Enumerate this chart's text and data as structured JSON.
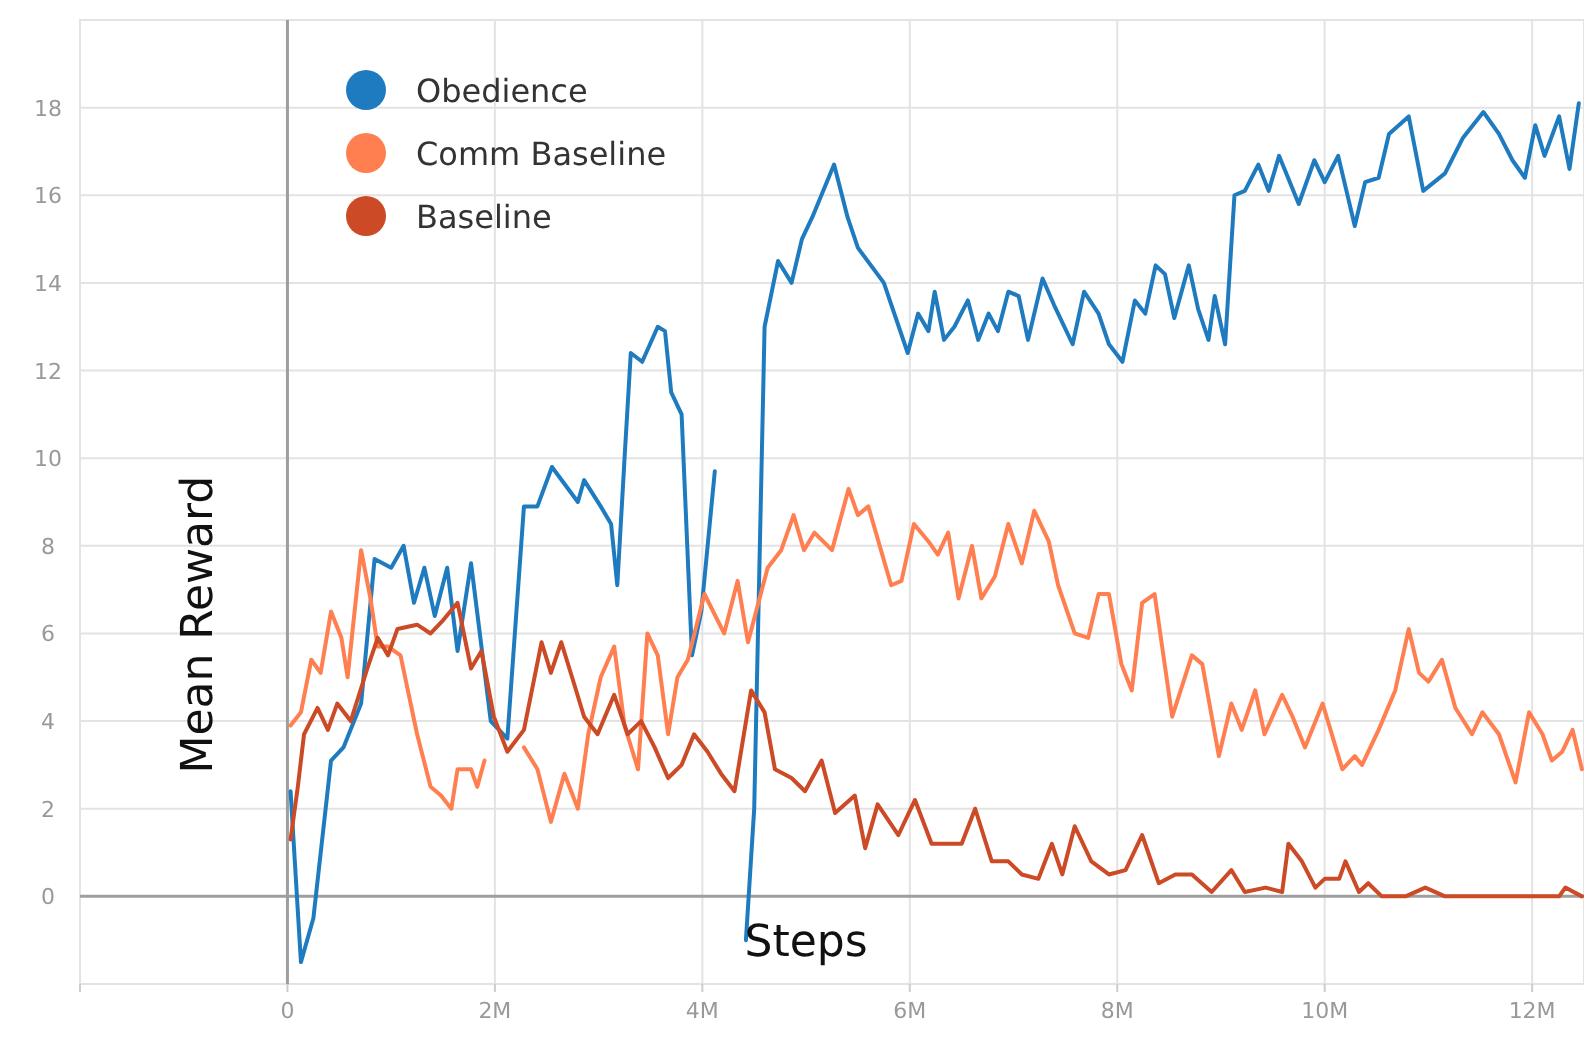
{
  "chart_data": {
    "type": "line",
    "xlabel": "Steps",
    "ylabel": "Mean Reward",
    "xlim": [
      -2000000,
      12500000
    ],
    "ylim": [
      -2,
      20
    ],
    "xticks": [
      {
        "value": -2000000,
        "label": null
      },
      {
        "value": 0,
        "label": "0"
      },
      {
        "value": 2000000,
        "label": "2M"
      },
      {
        "value": 4000000,
        "label": "4M"
      },
      {
        "value": 6000000,
        "label": "6M"
      },
      {
        "value": 8000000,
        "label": "8M"
      },
      {
        "value": 10000000,
        "label": "10M"
      },
      {
        "value": 12000000,
        "label": "12M"
      }
    ],
    "yticks": [
      {
        "value": 0,
        "label": "0"
      },
      {
        "value": 2,
        "label": "2"
      },
      {
        "value": 4,
        "label": "4"
      },
      {
        "value": 6,
        "label": "6"
      },
      {
        "value": 8,
        "label": "8"
      },
      {
        "value": 10,
        "label": "10"
      },
      {
        "value": 12,
        "label": "12"
      },
      {
        "value": 14,
        "label": "14"
      },
      {
        "value": 16,
        "label": "16"
      },
      {
        "value": 18,
        "label": "18"
      }
    ],
    "grid": true,
    "legend": "top left",
    "marker": "none",
    "line_style": "solid",
    "series": [
      {
        "name": "Obedience",
        "color": "#1f7bbf",
        "x": [
          30000,
          130000,
          250000,
          420000,
          540000,
          710000,
          840000,
          1000000,
          1120000,
          1220000,
          1320000,
          1420000,
          1540000,
          1640000,
          1770000,
          1960000,
          2120000,
          2280000,
          2410000,
          2550000,
          2800000,
          2860000,
          3020000,
          3120000,
          3180000,
          3250000,
          3310000,
          3420000,
          3570000,
          3640000,
          3700000,
          3800000,
          3900000,
          3990000,
          4120000,
          4150000,
          4400000,
          4420000,
          4500000,
          4600000,
          4730000,
          4860000,
          4960000,
          5060000,
          5270000,
          5400000,
          5500000,
          5750000,
          5980000,
          6080000,
          6180000,
          6240000,
          6330000,
          6430000,
          6560000,
          6660000,
          6760000,
          6850000,
          6950000,
          7050000,
          7140000,
          7280000,
          7390000,
          7570000,
          7680000,
          7820000,
          7920000,
          8050000,
          8170000,
          8270000,
          8370000,
          8460000,
          8550000,
          8690000,
          8780000,
          8880000,
          8940000,
          9040000,
          9130000,
          9230000,
          9360000,
          9460000,
          9560000,
          9750000,
          9900000,
          10000000,
          10130000,
          10290000,
          10390000,
          10520000,
          10620000,
          10810000,
          10950000,
          11160000,
          11330000,
          11530000,
          11680000,
          11810000,
          11930000,
          12030000,
          12120000,
          12260000,
          12360000,
          12450000
        ],
        "values": [
          2.4,
          -1.5,
          -0.5,
          3.1,
          3.4,
          4.4,
          7.7,
          7.5,
          8.0,
          6.7,
          7.5,
          6.4,
          7.5,
          5.6,
          7.6,
          4.0,
          3.6,
          8.9,
          8.9,
          9.8,
          9.0,
          9.5,
          8.9,
          8.5,
          7.1,
          10,
          12.4,
          12.2,
          13.0,
          12.9,
          11.5,
          11.0,
          5.5,
          6.5,
          9.7,
          null,
          null,
          -1,
          2,
          13.0,
          14.5,
          14.0,
          15.0,
          15.5,
          16.7,
          15.5,
          14.8,
          14.0,
          12.4,
          13.3,
          12.9,
          13.8,
          12.7,
          13.0,
          13.6,
          12.7,
          13.3,
          12.9,
          13.8,
          13.7,
          12.7,
          14.1,
          13.5,
          12.6,
          13.8,
          13.3,
          12.6,
          12.2,
          13.6,
          13.3,
          14.4,
          14.2,
          13.2,
          14.4,
          13.4,
          12.7,
          13.7,
          12.6,
          16.0,
          16.1,
          16.7,
          16.1,
          16.9,
          15.8,
          16.8,
          16.3,
          16.9,
          15.3,
          16.3,
          16.4,
          17.4,
          17.8,
          16.1,
          16.5,
          17.3,
          17.9,
          17.4,
          16.8,
          16.4,
          17.6,
          16.9,
          17.8,
          16.6,
          18.1
        ]
      },
      {
        "name": "Comm Baseline",
        "color": "#ff7f50",
        "x": [
          30000,
          130000,
          230000,
          320000,
          420000,
          520000,
          580000,
          710000,
          800000,
          870000,
          970000,
          1090000,
          1250000,
          1380000,
          1480000,
          1580000,
          1640000,
          1770000,
          1830000,
          1900000,
          1930000,
          2250000,
          2280000,
          2410000,
          2540000,
          2670000,
          2800000,
          2900000,
          3020000,
          3150000,
          3250000,
          3380000,
          3470000,
          3570000,
          3670000,
          3760000,
          3860000,
          4020000,
          4210000,
          4340000,
          4440000,
          4630000,
          4760000,
          4880000,
          4980000,
          5080000,
          5250000,
          5410000,
          5500000,
          5600000,
          5820000,
          5920000,
          6040000,
          6180000,
          6270000,
          6370000,
          6470000,
          6600000,
          6690000,
          6820000,
          6950000,
          7080000,
          7200000,
          7340000,
          7430000,
          7590000,
          7720000,
          7820000,
          7920000,
          8040000,
          8140000,
          8240000,
          8360000,
          8530000,
          8720000,
          8820000,
          8980000,
          9100000,
          9200000,
          9330000,
          9420000,
          9590000,
          9690000,
          9810000,
          9980000,
          10170000,
          10290000,
          10360000,
          10520000,
          10680000,
          10810000,
          10910000,
          11000000,
          11130000,
          11260000,
          11420000,
          11520000,
          11680000,
          11840000,
          11970000,
          12100000,
          12190000,
          12290000,
          12390000,
          12480000
        ],
        "values": [
          3.9,
          4.2,
          5.4,
          5.1,
          6.5,
          5.9,
          5.0,
          7.9,
          6.8,
          5.7,
          5.7,
          5.5,
          3.7,
          2.5,
          2.3,
          2.0,
          2.9,
          2.9,
          2.5,
          3.1,
          null,
          null,
          3.4,
          2.9,
          1.7,
          2.8,
          2.0,
          3.7,
          5.0,
          5.7,
          3.9,
          2.9,
          6.0,
          5.5,
          3.7,
          5.0,
          5.4,
          6.9,
          6.0,
          7.2,
          5.8,
          7.5,
          7.9,
          8.7,
          7.9,
          8.3,
          7.9,
          9.3,
          8.7,
          8.9,
          7.1,
          7.2,
          8.5,
          8.1,
          7.8,
          8.3,
          6.8,
          8.0,
          6.8,
          7.3,
          8.5,
          7.6,
          8.8,
          8.1,
          7.1,
          6.0,
          5.9,
          6.9,
          6.9,
          5.3,
          4.7,
          6.7,
          6.9,
          4.1,
          5.5,
          5.3,
          3.2,
          4.4,
          3.8,
          4.7,
          3.7,
          4.6,
          4.1,
          3.4,
          4.4,
          2.9,
          3.2,
          3.0,
          3.8,
          4.7,
          6.1,
          5.1,
          4.9,
          5.4,
          4.3,
          3.7,
          4.2,
          3.7,
          2.6,
          4.2,
          3.7,
          3.1,
          3.3,
          3.8,
          2.9
        ]
      },
      {
        "name": "Baseline",
        "color": "#cc4a25",
        "x": [
          30000,
          100000,
          160000,
          290000,
          390000,
          480000,
          610000,
          770000,
          870000,
          970000,
          1060000,
          1250000,
          1380000,
          1500000,
          1640000,
          1770000,
          1870000,
          1990000,
          2120000,
          2280000,
          2450000,
          2540000,
          2640000,
          2770000,
          2860000,
          2990000,
          3150000,
          3280000,
          3410000,
          3540000,
          3670000,
          3800000,
          3920000,
          4050000,
          4180000,
          4310000,
          4470000,
          4600000,
          4700000,
          4860000,
          4990000,
          5150000,
          5280000,
          5470000,
          5570000,
          5690000,
          5890000,
          6050000,
          6210000,
          6370000,
          6500000,
          6630000,
          6790000,
          6950000,
          7080000,
          7240000,
          7370000,
          7470000,
          7590000,
          7750000,
          7920000,
          8080000,
          8240000,
          8400000,
          8560000,
          8720000,
          8910000,
          9100000,
          9230000,
          9430000,
          9590000,
          9650000,
          9780000,
          9910000,
          10000000,
          10140000,
          10200000,
          10330000,
          10420000,
          10550000,
          10780000,
          10970000,
          11160000,
          11620000,
          12260000,
          12320000,
          12480000
        ],
        "values": [
          1.3,
          2.5,
          3.7,
          4.3,
          3.8,
          4.4,
          4.0,
          5.2,
          5.9,
          5.5,
          6.1,
          6.2,
          6.0,
          6.3,
          6.7,
          5.2,
          5.6,
          4.1,
          3.3,
          3.8,
          5.8,
          5.1,
          5.8,
          4.8,
          4.1,
          3.7,
          4.6,
          3.7,
          4.0,
          3.4,
          2.7,
          3.0,
          3.7,
          3.3,
          2.8,
          2.4,
          4.7,
          4.2,
          2.9,
          2.7,
          2.4,
          3.1,
          1.9,
          2.3,
          1.1,
          2.1,
          1.4,
          2.2,
          1.2,
          1.2,
          1.2,
          2.0,
          0.8,
          0.8,
          0.5,
          0.4,
          1.2,
          0.5,
          1.6,
          0.8,
          0.5,
          0.6,
          1.4,
          0.3,
          0.5,
          0.5,
          0.1,
          0.6,
          0.1,
          0.2,
          0.1,
          1.2,
          0.8,
          0.2,
          0.4,
          0.4,
          0.8,
          0.1,
          0.3,
          0,
          0,
          0.2,
          0,
          0,
          0,
          0.2,
          0
        ]
      }
    ]
  }
}
